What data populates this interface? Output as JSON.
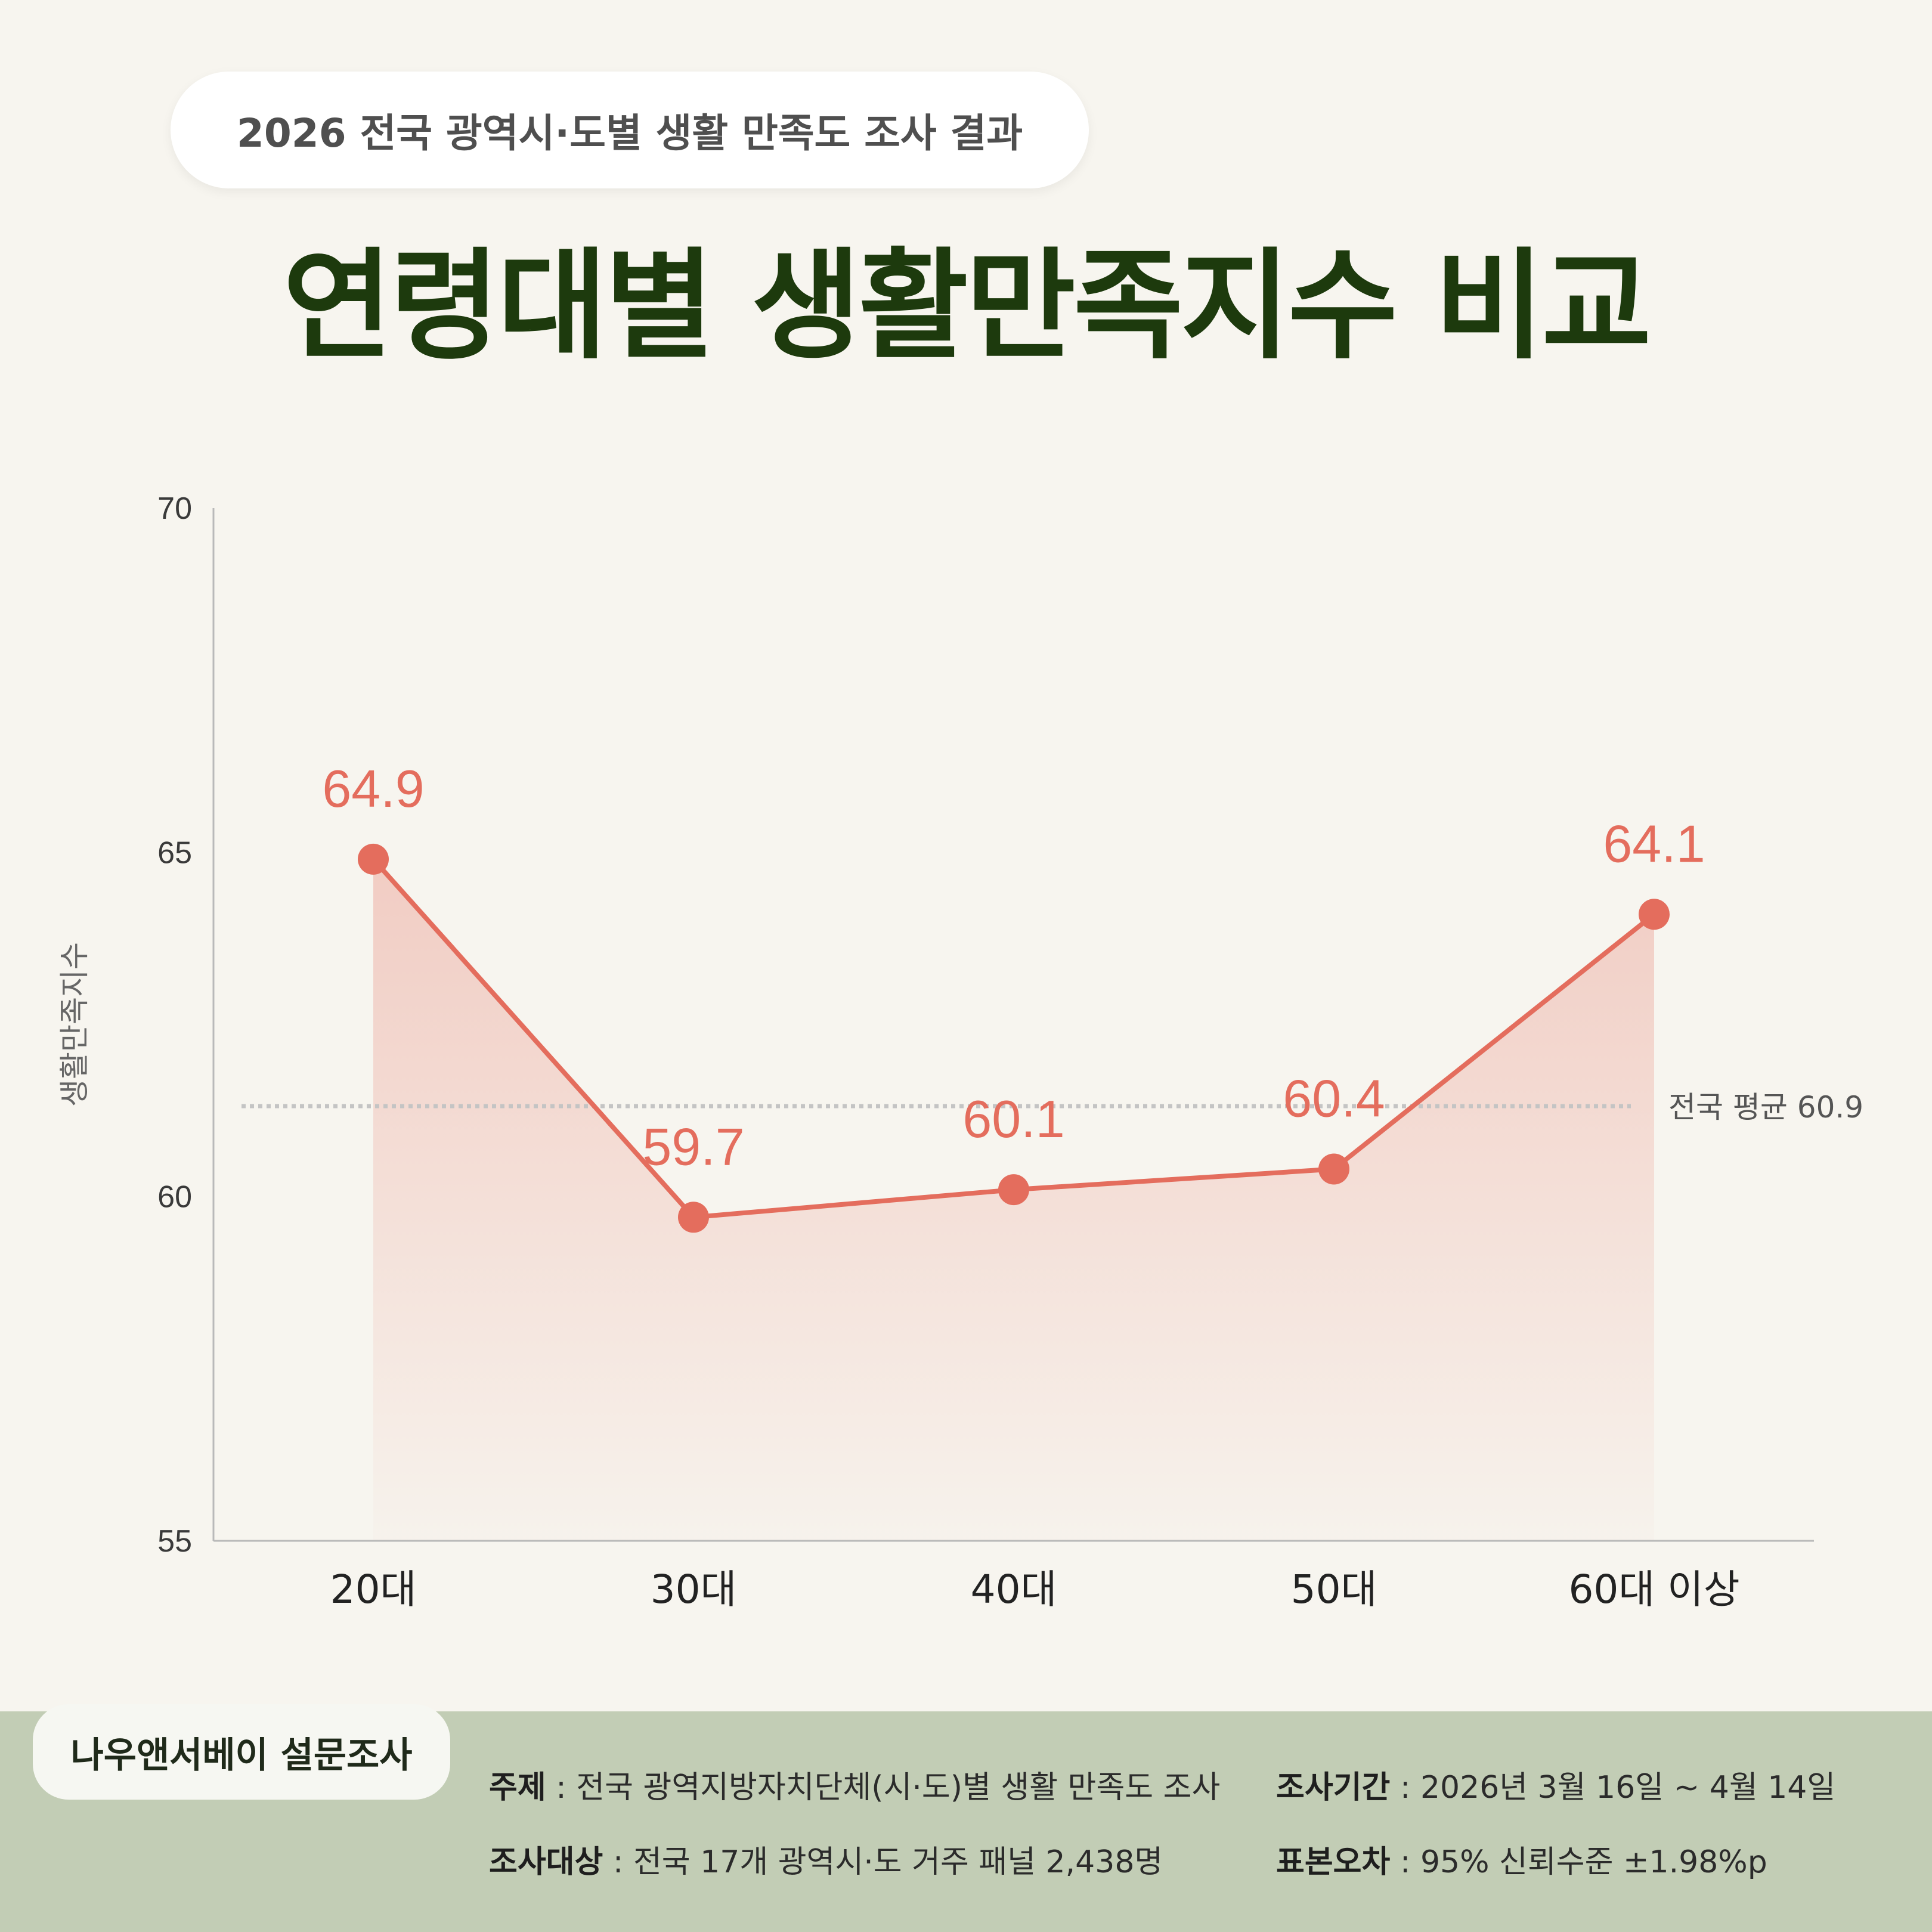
{
  "header": {
    "subtitle": "2026 전국 광역시·도별 생활 만족도 조사 결과",
    "title": "연령대별 생활만족지수 비교"
  },
  "chart_data": {
    "type": "line",
    "categories": [
      "20대",
      "30대",
      "40대",
      "50대",
      "60대 이상"
    ],
    "values": [
      64.9,
      59.7,
      60.1,
      60.4,
      64.1
    ],
    "data_labels": [
      "64.9",
      "59.7",
      "60.1",
      "60.4",
      "64.1"
    ],
    "ylabel": "생활만족지수",
    "ylim": [
      55,
      70
    ],
    "yticks": [
      55,
      60,
      65,
      70
    ],
    "ytick_labels": [
      "55",
      "60",
      "65",
      "70"
    ],
    "reference_line": {
      "value": 60.9,
      "label": "전국 평균 60.9"
    },
    "grid": false,
    "area_fill": true
  },
  "colors": {
    "line": "#e46d5d",
    "label": "#e46d5d",
    "title": "#1d3a0d",
    "background": "#f7f5ef",
    "footer": "#c2cdb5",
    "reference": "#c4c4c4"
  },
  "footer": {
    "brand": "나우앤서베이 설문조사",
    "topic_key": "주제",
    "topic_value": "전국 광역지방자치단체(시·도)별 생활 만족도 조사",
    "target_key": "조사대상",
    "target_value": "전국 17개 광역시·도 거주 패널 2,438명",
    "period_key": "조사기간",
    "period_value": "2026년 3월 16일 ~ 4월 14일",
    "error_key": "표본오차",
    "error_value": "95% 신뢰수준 ±1.98%p"
  }
}
